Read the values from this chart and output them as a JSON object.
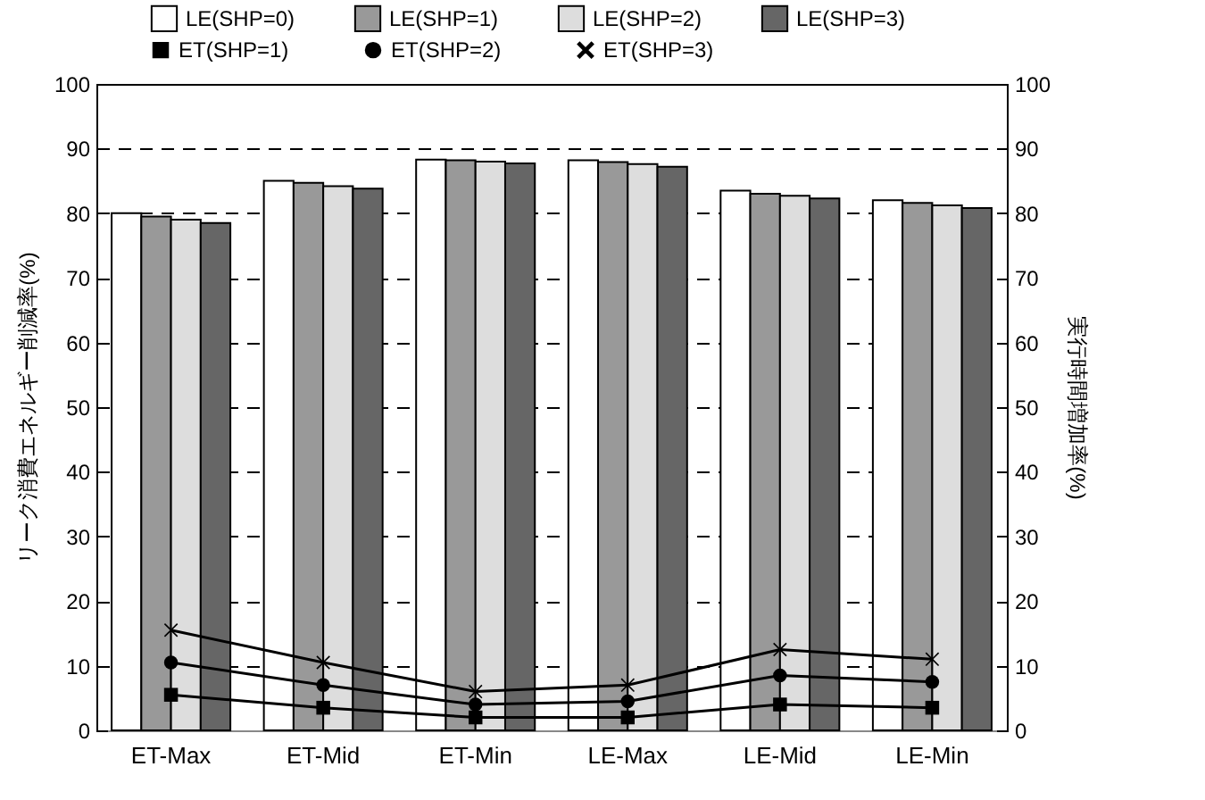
{
  "chart_data": {
    "type": "bar",
    "ylabel": "リーク消費エネルギー削減率(%)",
    "y2label": "実行時間増加率(%)",
    "categories": [
      "ET-Max",
      "ET-Mid",
      "ET-Min",
      "LE-Max",
      "LE-Mid",
      "LE-Min"
    ],
    "ylim": [
      0,
      100
    ],
    "yticks": [
      0,
      10,
      20,
      30,
      40,
      50,
      60,
      70,
      80,
      90,
      100
    ],
    "y2lim": [
      0,
      100
    ],
    "y2ticks": [
      0,
      10,
      20,
      30,
      40,
      50,
      60,
      70,
      80,
      90,
      100
    ],
    "grid": "y",
    "legend": "top",
    "series": [
      {
        "name": "LE(SHP=0)",
        "type": "bar",
        "color": "#ffffff",
        "values": [
          80.0,
          85.0,
          88.3,
          88.2,
          83.5,
          82.0
        ]
      },
      {
        "name": "LE(SHP=1)",
        "type": "bar",
        "color": "#999999",
        "values": [
          79.5,
          84.7,
          88.2,
          87.9,
          83.0,
          81.6
        ]
      },
      {
        "name": "LE(SHP=2)",
        "type": "bar",
        "color": "#dddddd",
        "values": [
          79.0,
          84.2,
          88.0,
          87.6,
          82.7,
          81.2
        ]
      },
      {
        "name": "LE(SHP=3)",
        "type": "bar",
        "color": "#666666",
        "values": [
          78.5,
          83.8,
          87.7,
          87.2,
          82.3,
          80.8
        ]
      },
      {
        "name": "ET(SHP=1)",
        "type": "line",
        "axis": "y2",
        "color": "#000000",
        "marker": "square",
        "values": [
          5.5,
          3.5,
          2.0,
          2.0,
          4.0,
          3.5
        ]
      },
      {
        "name": "ET(SHP=2)",
        "type": "line",
        "axis": "y2",
        "color": "#000000",
        "marker": "circle",
        "values": [
          10.5,
          7.0,
          4.0,
          4.5,
          8.5,
          7.5
        ]
      },
      {
        "name": "ET(SHP=3)",
        "type": "line",
        "axis": "y2",
        "color": "#000000",
        "marker": "cross",
        "values": [
          15.5,
          10.5,
          6.0,
          7.0,
          12.5,
          11.0
        ]
      }
    ]
  }
}
